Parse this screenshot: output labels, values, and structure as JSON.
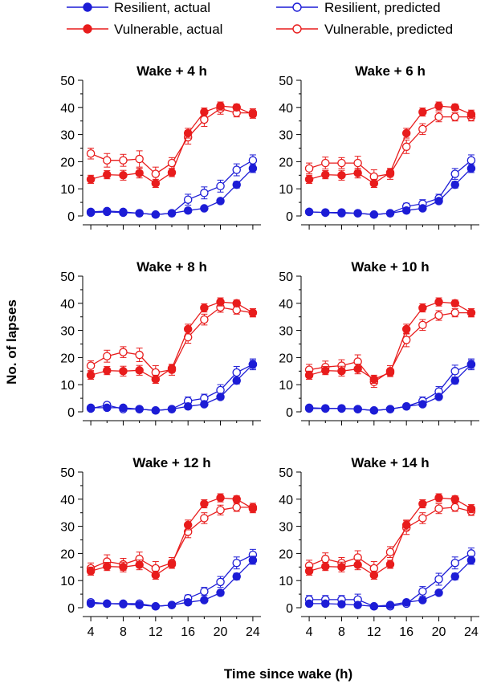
{
  "colors": {
    "resilient": "#1c1cd6",
    "vulnerable": "#e81c1c",
    "axis": "#000000"
  },
  "legend": [
    {
      "label": "Resilient, actual",
      "color": "#1c1cd6",
      "filled": true
    },
    {
      "label": "Vulnerable, actual",
      "color": "#e81c1c",
      "filled": true
    },
    {
      "label": "Resilient, predicted",
      "color": "#1c1cd6",
      "filled": false
    },
    {
      "label": "Vulnerable, predicted",
      "color": "#e81c1c",
      "filled": false
    }
  ],
  "chart_data": {
    "type": "line",
    "xlabel": "Time since wake (h)",
    "ylabel": "No. of lapses",
    "xlim": [
      3,
      25
    ],
    "ylim": [
      0,
      50
    ],
    "xticks": [
      4,
      8,
      12,
      16,
      20,
      24
    ],
    "yticks": [
      0,
      10,
      20,
      30,
      40,
      50
    ],
    "x": [
      4,
      6,
      8,
      10,
      12,
      14,
      16,
      18,
      20,
      22,
      24
    ],
    "panels": [
      {
        "title": "Wake + 4 h",
        "series": [
          {
            "name": "Resilient, actual",
            "values": [
              1.5,
              1.8,
              1.5,
              1.0,
              0.5,
              1.0,
              2.0,
              2.8,
              5.5,
              11.5,
              17.5
            ],
            "errors": [
              0.8,
              0.8,
              0.8,
              0.8,
              0.5,
              0.5,
              0.8,
              0.8,
              1.0,
              1.2,
              1.5
            ]
          },
          {
            "name": "Vulnerable, actual",
            "values": [
              13.5,
              15.2,
              15.0,
              15.8,
              12.0,
              16.0,
              30.5,
              38.3,
              40.5,
              40.0,
              37.5
            ],
            "errors": [
              1.5,
              1.5,
              1.8,
              1.8,
              1.5,
              1.5,
              1.8,
              1.5,
              1.5,
              1.2,
              1.5
            ]
          },
          {
            "name": "Resilient, predicted",
            "values": [
              1.2,
              1.5,
              1.2,
              1.0,
              0.5,
              1.0,
              6.0,
              8.5,
              11.0,
              17.0,
              20.5
            ],
            "errors": [
              0.8,
              0.8,
              0.8,
              0.8,
              0.5,
              0.5,
              2.0,
              2.2,
              2.2,
              2.2,
              2.0
            ]
          },
          {
            "name": "Vulnerable, predicted",
            "values": [
              23.0,
              20.5,
              20.5,
              21.0,
              15.5,
              19.5,
              29.0,
              35.5,
              39.5,
              38.0,
              38.0
            ],
            "errors": [
              2.0,
              2.5,
              2.2,
              3.0,
              2.5,
              2.0,
              2.5,
              2.5,
              2.0,
              1.5,
              1.5
            ]
          }
        ]
      },
      {
        "title": "Wake + 6 h",
        "series": [
          {
            "name": "Resilient, actual",
            "values": [
              1.5,
              1.3,
              1.3,
              1.0,
              0.5,
              1.0,
              2.0,
              2.8,
              5.5,
              11.5,
              17.5
            ],
            "errors": [
              0.8,
              0.8,
              0.8,
              0.8,
              0.5,
              0.5,
              0.8,
              0.8,
              1.0,
              1.2,
              1.5
            ]
          },
          {
            "name": "Vulnerable, actual",
            "values": [
              13.5,
              15.2,
              15.0,
              15.8,
              12.0,
              16.0,
              30.5,
              38.3,
              40.5,
              40.0,
              37.5
            ],
            "errors": [
              1.5,
              1.5,
              1.8,
              1.8,
              1.5,
              1.5,
              1.8,
              1.5,
              1.5,
              1.2,
              1.5
            ]
          },
          {
            "name": "Resilient, predicted",
            "values": [
              1.5,
              1.2,
              1.0,
              1.0,
              0.5,
              1.0,
              3.5,
              4.5,
              6.5,
              15.5,
              20.5
            ],
            "errors": [
              0.8,
              0.8,
              0.8,
              0.8,
              0.5,
              0.5,
              1.2,
              1.5,
              1.5,
              2.0,
              2.0
            ]
          },
          {
            "name": "Vulnerable, predicted",
            "values": [
              17.5,
              19.5,
              19.5,
              19.5,
              14.5,
              15.5,
              25.5,
              32.0,
              36.5,
              36.5,
              36.5
            ],
            "errors": [
              2.0,
              2.2,
              2.0,
              2.5,
              2.5,
              2.0,
              2.5,
              2.0,
              1.8,
              1.5,
              1.5
            ]
          }
        ]
      },
      {
        "title": "Wake + 8 h",
        "series": [
          {
            "name": "Resilient, actual",
            "values": [
              1.5,
              1.5,
              1.5,
              1.0,
              0.5,
              1.0,
              2.0,
              2.8,
              5.5,
              11.5,
              17.5
            ],
            "errors": [
              0.8,
              0.8,
              0.8,
              0.8,
              0.5,
              0.5,
              0.8,
              0.8,
              1.0,
              1.2,
              1.5
            ]
          },
          {
            "name": "Vulnerable, actual",
            "values": [
              13.5,
              15.2,
              15.0,
              15.3,
              12.0,
              16.0,
              30.5,
              38.3,
              40.5,
              40.0,
              36.5
            ],
            "errors": [
              1.5,
              1.5,
              1.8,
              1.8,
              1.5,
              1.5,
              1.8,
              1.5,
              1.5,
              1.2,
              1.5
            ]
          },
          {
            "name": "Resilient, predicted",
            "values": [
              1.2,
              2.5,
              1.0,
              1.0,
              0.5,
              1.0,
              4.0,
              5.0,
              8.0,
              14.5,
              17.5
            ],
            "errors": [
              0.8,
              1.0,
              0.8,
              0.8,
              0.5,
              0.5,
              1.5,
              1.5,
              2.0,
              2.2,
              2.0
            ]
          },
          {
            "name": "Vulnerable, predicted",
            "values": [
              17.0,
              20.5,
              22.0,
              21.0,
              14.5,
              15.5,
              27.5,
              34.0,
              38.5,
              37.5,
              36.5
            ],
            "errors": [
              1.8,
              2.2,
              2.0,
              2.5,
              2.5,
              2.0,
              2.2,
              2.0,
              1.8,
              1.5,
              1.5
            ]
          }
        ]
      },
      {
        "title": "Wake + 10 h",
        "series": [
          {
            "name": "Resilient, actual",
            "values": [
              1.5,
              1.3,
              1.3,
              1.0,
              0.5,
              1.0,
              2.0,
              2.8,
              5.5,
              11.5,
              17.5
            ],
            "errors": [
              0.8,
              0.8,
              0.8,
              0.8,
              0.5,
              0.5,
              0.8,
              0.8,
              1.0,
              1.2,
              1.5
            ]
          },
          {
            "name": "Vulnerable, actual",
            "values": [
              13.5,
              15.2,
              15.0,
              15.8,
              12.0,
              14.5,
              30.5,
              38.3,
              40.5,
              40.0,
              36.5
            ],
            "errors": [
              1.5,
              1.5,
              1.8,
              1.8,
              1.5,
              1.5,
              1.8,
              1.5,
              1.5,
              1.2,
              1.5
            ]
          },
          {
            "name": "Resilient, predicted",
            "values": [
              1.2,
              1.2,
              1.2,
              1.0,
              0.5,
              1.0,
              2.0,
              4.0,
              7.5,
              15.0,
              17.5
            ],
            "errors": [
              0.8,
              0.8,
              0.8,
              0.8,
              0.5,
              0.5,
              0.8,
              1.5,
              1.8,
              2.2,
              2.0
            ]
          },
          {
            "name": "Vulnerable, predicted",
            "values": [
              15.5,
              16.5,
              17.0,
              18.5,
              11.0,
              15.0,
              26.5,
              32.0,
              35.5,
              36.5,
              36.5
            ],
            "errors": [
              2.0,
              2.2,
              2.2,
              2.5,
              2.0,
              2.0,
              2.5,
              2.0,
              1.8,
              1.5,
              1.5
            ]
          }
        ]
      },
      {
        "title": "Wake + 12 h",
        "series": [
          {
            "name": "Resilient, actual",
            "values": [
              1.5,
              1.5,
              1.3,
              1.0,
              0.5,
              1.0,
              2.0,
              2.8,
              5.5,
              11.5,
              17.5
            ],
            "errors": [
              0.8,
              0.8,
              0.8,
              0.8,
              0.5,
              0.5,
              0.8,
              0.8,
              1.0,
              1.2,
              1.5
            ]
          },
          {
            "name": "Vulnerable, actual",
            "values": [
              13.5,
              15.2,
              15.0,
              15.8,
              12.0,
              16.0,
              30.5,
              38.3,
              40.5,
              40.0,
              36.5
            ],
            "errors": [
              1.5,
              1.5,
              1.8,
              1.8,
              1.5,
              1.5,
              1.8,
              1.5,
              1.5,
              1.2,
              1.5
            ]
          },
          {
            "name": "Resilient, predicted",
            "values": [
              2.0,
              1.5,
              1.5,
              1.5,
              0.5,
              1.0,
              3.5,
              6.0,
              9.5,
              16.5,
              19.5
            ],
            "errors": [
              0.8,
              0.8,
              0.8,
              0.8,
              0.5,
              0.5,
              1.2,
              1.5,
              2.0,
              2.2,
              2.0
            ]
          },
          {
            "name": "Vulnerable, predicted",
            "values": [
              14.5,
              17.0,
              16.0,
              18.0,
              14.5,
              16.5,
              28.0,
              33.0,
              36.0,
              37.0,
              37.0
            ],
            "errors": [
              2.0,
              2.5,
              2.2,
              2.5,
              2.5,
              2.0,
              2.2,
              2.0,
              1.8,
              1.5,
              1.5
            ]
          }
        ]
      },
      {
        "title": "Wake + 14 h",
        "series": [
          {
            "name": "Resilient, actual",
            "values": [
              1.5,
              1.5,
              1.3,
              1.0,
              0.5,
              1.0,
              2.0,
              2.8,
              5.5,
              11.5,
              17.5
            ],
            "errors": [
              0.8,
              0.8,
              0.8,
              0.8,
              0.5,
              0.5,
              0.8,
              0.8,
              1.0,
              1.2,
              1.5
            ]
          },
          {
            "name": "Vulnerable, actual",
            "values": [
              13.5,
              15.2,
              15.0,
              15.8,
              12.0,
              16.0,
              30.5,
              38.3,
              40.5,
              40.0,
              36.5
            ],
            "errors": [
              1.5,
              1.5,
              1.8,
              1.8,
              1.5,
              1.5,
              1.8,
              1.5,
              1.5,
              1.2,
              1.5
            ]
          },
          {
            "name": "Resilient, predicted",
            "values": [
              3.0,
              3.0,
              3.0,
              3.0,
              0.5,
              0.5,
              1.5,
              6.0,
              10.5,
              16.5,
              20.0
            ],
            "errors": [
              1.5,
              1.5,
              1.5,
              2.0,
              0.5,
              0.5,
              0.8,
              1.8,
              2.2,
              2.2,
              2.0
            ]
          },
          {
            "name": "Vulnerable, predicted",
            "values": [
              15.5,
              18.0,
              16.5,
              18.5,
              14.5,
              20.5,
              29.5,
              33.0,
              36.5,
              37.0,
              35.5
            ],
            "errors": [
              2.0,
              2.2,
              2.0,
              2.5,
              2.5,
              2.0,
              2.5,
              2.0,
              1.8,
              1.5,
              1.5
            ]
          }
        ]
      }
    ]
  }
}
